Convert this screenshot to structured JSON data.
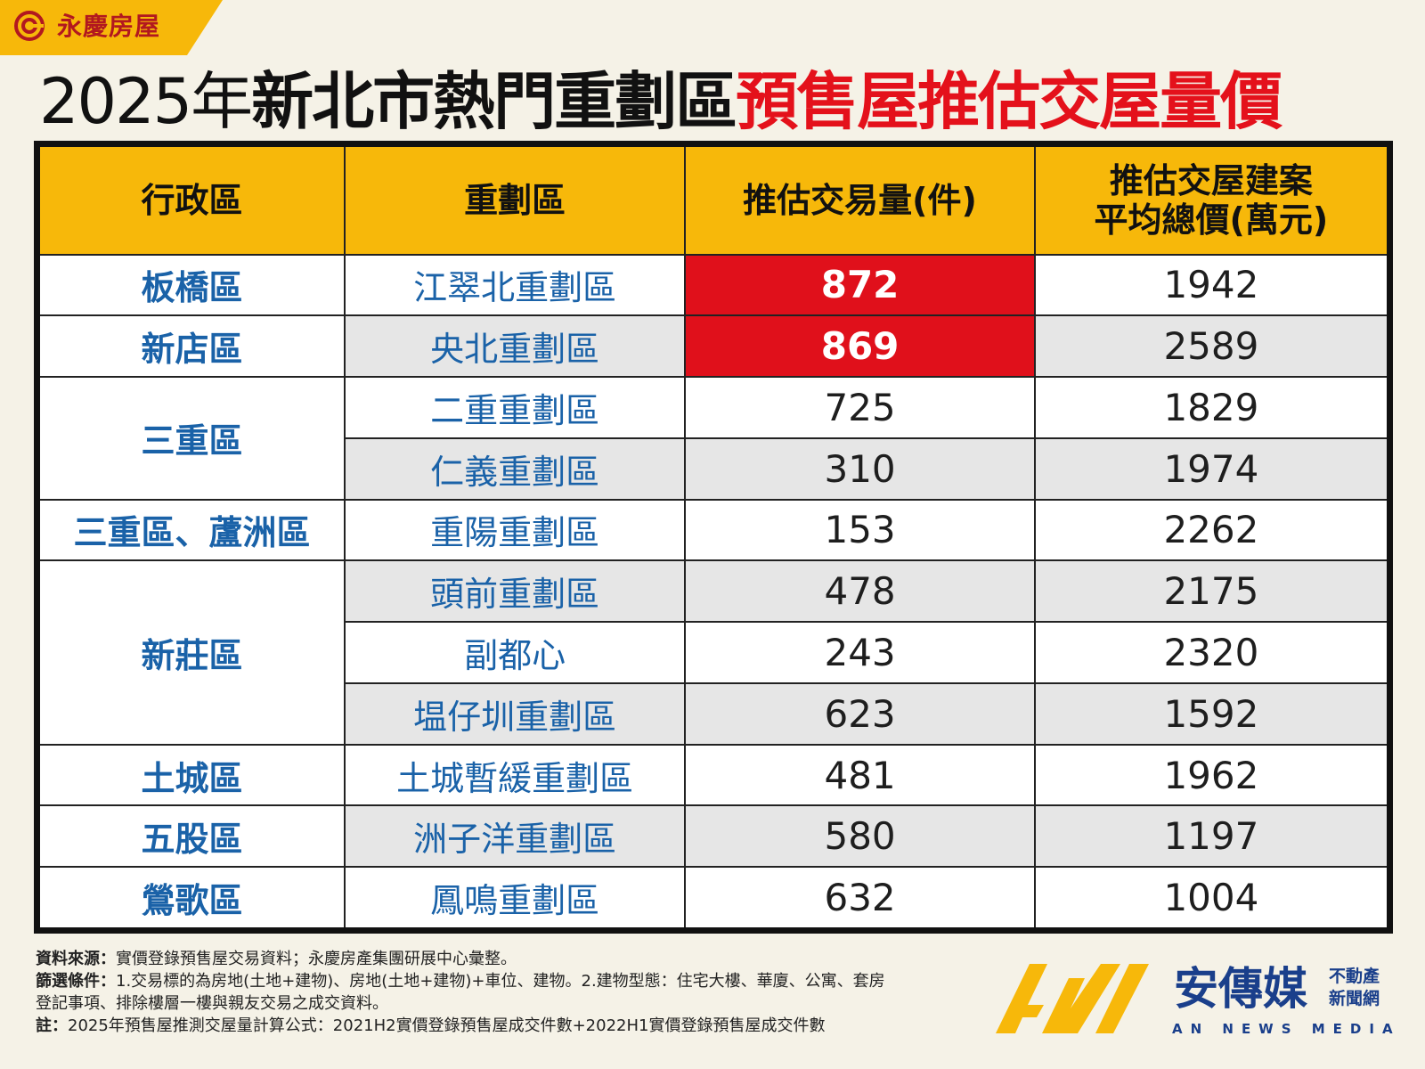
{
  "brand": {
    "name": "永慶房屋",
    "logo_icon": "yungching-logo-icon",
    "color": "#f7b80a"
  },
  "title": {
    "year": "2025年",
    "black": "新北市熱門重劃區",
    "red": "預售屋推估交屋量價"
  },
  "table": {
    "headers": [
      "行政區",
      "重劃區",
      "推估交易量(件)",
      "推估交屋建案平均總價(萬元)"
    ],
    "header_multiline": [
      "推估交屋建案",
      "平均總價(萬元)"
    ],
    "rows": [
      {
        "district": "板橋區",
        "zone": "江翠北重劃區",
        "volume": "872",
        "price": "1942",
        "highlight": true
      },
      {
        "district": "新店區",
        "zone": "央北重劃區",
        "volume": "869",
        "price": "2589",
        "highlight": true
      },
      {
        "district": "三重區",
        "zone": "二重重劃區",
        "volume": "725",
        "price": "1829"
      },
      {
        "district": "",
        "zone": "仁義重劃區",
        "volume": "310",
        "price": "1974"
      },
      {
        "district": "三重區、蘆洲區",
        "zone": "重陽重劃區",
        "volume": "153",
        "price": "2262"
      },
      {
        "district": "新莊區",
        "zone": "頭前重劃區",
        "volume": "478",
        "price": "2175"
      },
      {
        "district": "",
        "zone": "副都心",
        "volume": "243",
        "price": "2320"
      },
      {
        "district": "",
        "zone": "塭仔圳重劃區",
        "volume": "623",
        "price": "1592"
      },
      {
        "district": "土城區",
        "zone": "土城暫緩重劃區",
        "volume": "481",
        "price": "1962"
      },
      {
        "district": "五股區",
        "zone": "洲子洋重劃區",
        "volume": "580",
        "price": "1197"
      },
      {
        "district": "鶯歌區",
        "zone": "鳳鳴重劃區",
        "volume": "632",
        "price": "1004"
      }
    ],
    "highlight_color": "#e0101b",
    "district_color": "#1a62a8"
  },
  "notes": {
    "source_label": "資料來源：",
    "source_text": "實價登錄預售屋交易資料；永慶房產集團研展中心彙整。",
    "filter_label": "篩選條件：",
    "filter_text": "1.交易標的為房地(土地+建物)、房地(土地+建物)+車位、建物。2.建物型態：住宅大樓、華廈、公寓、套房",
    "filter_text2": "登記事項、排除樓層一樓與親友交易之成交資料。",
    "note_label": "註：",
    "note_text": "2025年預售屋推測交屋量計算公式：2021H2實價登錄預售屋成交件數+2022H1實價登錄預售屋成交件數"
  },
  "media": {
    "logo_icon": "an-news-media-logo-icon",
    "cn_name": "安傳媒",
    "sub1": "不動產",
    "sub2": "新聞網",
    "en_name": "AN NEWS MEDIA"
  }
}
